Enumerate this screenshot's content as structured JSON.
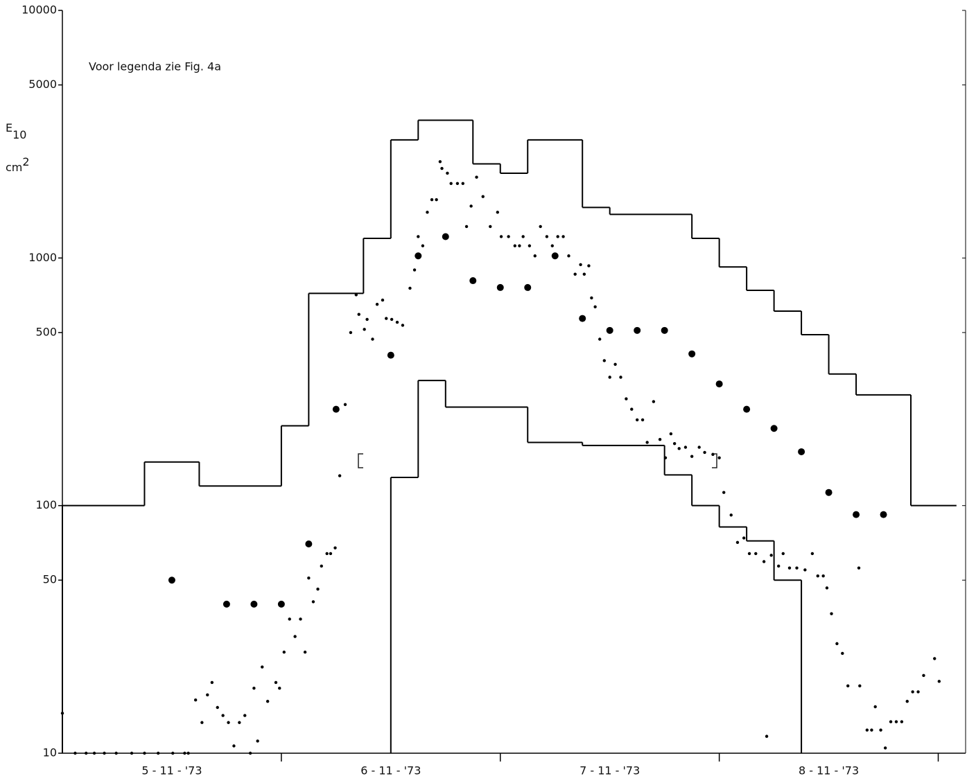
{
  "chart_data": {
    "type": "line",
    "annotation": "Voor legenda zie Fig. 4a",
    "ylabel": {
      "symbol": "E",
      "subscript": "10",
      "unit": "cm",
      "superscript": "2"
    },
    "log_y": true,
    "color": "#000000",
    "xlim": [
      0,
      99
    ],
    "xticks": [
      24,
      48,
      72,
      96
    ],
    "xlabels": [
      {
        "value": 12,
        "label": "5 - 11 - '73"
      },
      {
        "value": 36,
        "label": "6 - 11 - '73"
      },
      {
        "value": 60,
        "label": "7 - 11 - '73"
      },
      {
        "value": 84,
        "label": "8 - 11 - '73"
      }
    ],
    "ylim": [
      10,
      10000
    ],
    "yticks": [
      10,
      50,
      100,
      500,
      1000,
      5000,
      10000
    ],
    "series": [
      {
        "style": "step",
        "edges": [
          0,
          9,
          15,
          24,
          27,
          33,
          36,
          39,
          45,
          48,
          51,
          57,
          60,
          69,
          72,
          75,
          78,
          81,
          84,
          87,
          93,
          98
        ],
        "values": [
          100,
          150,
          120,
          210,
          720,
          1200,
          3000,
          3600,
          2400,
          2200,
          3000,
          1600,
          1500,
          1200,
          920,
          740,
          610,
          490,
          340,
          280,
          100
        ]
      },
      {
        "style": "step",
        "edges": [
          36,
          39,
          42,
          51,
          57,
          66,
          69,
          72,
          75,
          78,
          81
        ],
        "values": [
          130,
          320,
          250,
          180,
          175,
          133,
          100,
          82,
          72,
          50
        ]
      },
      {
        "style": "large-dots",
        "x": [
          12,
          18,
          21,
          24,
          27,
          30,
          36,
          39,
          42,
          45,
          48,
          51,
          54,
          57,
          60,
          63,
          66,
          69,
          72,
          75,
          78,
          81,
          84,
          87,
          90
        ],
        "values": [
          50,
          40,
          40,
          40,
          70,
          245,
          405,
          1020,
          1220,
          810,
          760,
          760,
          1020,
          570,
          510,
          510,
          510,
          410,
          310,
          245,
          205,
          165,
          113,
          92,
          92
        ]
      },
      {
        "style": "dots",
        "x": [
          0,
          1.4,
          2.6,
          3.5,
          4.6,
          5.9,
          7.6,
          9,
          10.5,
          12.1,
          13.4,
          13.8,
          14.6,
          15.3,
          15.9,
          16.4,
          17,
          17.6,
          18.2,
          18.8,
          19.4,
          20,
          20.6,
          21,
          21.4,
          21.9,
          22.5,
          23.4,
          23.8,
          24.3,
          24.9,
          25.5,
          26.1,
          26.6,
          27,
          27.5,
          28,
          28.4,
          29,
          29.4,
          29.9,
          30.4,
          31,
          31.6,
          32.2,
          32.5,
          33.1,
          33.4,
          34,
          34.5,
          35.1,
          35.5,
          36.1,
          36.7,
          37.3,
          38.1,
          38.6,
          39,
          39.5,
          40,
          40.5,
          41,
          41.4,
          41.6,
          42.2,
          42.6,
          43.3,
          43.9,
          44.3,
          44.8,
          45.4,
          46.1,
          46.9,
          47.7,
          48.1,
          48.9,
          49.6,
          50.1,
          50.5,
          51.2,
          51.8,
          52.4,
          53.1,
          53.7,
          54.3,
          54.9,
          55.5,
          56.2,
          56.8,
          57.2,
          57.7,
          58,
          58.4,
          58.9,
          59.4,
          60,
          60.6,
          61.2,
          61.8,
          62.4,
          63,
          63.6,
          64.1,
          64.8,
          65.5,
          66.1,
          66.7,
          67.1,
          67.6,
          68.3,
          69,
          69.8,
          70.4,
          71.3,
          72,
          72.5,
          73.3,
          74,
          74.7,
          75.3,
          76,
          76.9,
          77.2,
          77.7,
          78.5,
          79,
          79.7,
          80.5,
          81.4,
          82.2,
          82.8,
          83.4,
          83.8,
          84.3,
          84.9,
          85.5,
          86.1,
          87.3,
          87.4,
          88.2,
          88.7,
          89.1,
          89.7,
          90.2,
          90.8,
          91.4,
          92,
          92.6,
          93.2,
          93.8,
          94.4,
          95.6,
          96.1
        ],
        "values": [
          14.5,
          10,
          10,
          10,
          10,
          10,
          10,
          10,
          10,
          10,
          10,
          10,
          16.4,
          13.3,
          17.2,
          19.3,
          15.3,
          14.2,
          13.3,
          10.7,
          13.3,
          14.2,
          10,
          18.3,
          11.2,
          22.3,
          16.2,
          19.3,
          18.3,
          25.6,
          34.8,
          29.6,
          34.8,
          25.6,
          51,
          40.9,
          46,
          57,
          64,
          64,
          67.5,
          132,
          256,
          500,
          710,
          592,
          515,
          565,
          470,
          650,
          676,
          570,
          565,
          550,
          535,
          755,
          895,
          1220,
          1120,
          1530,
          1720,
          1720,
          2450,
          2300,
          2200,
          2000,
          2000,
          2000,
          1340,
          1620,
          2120,
          1770,
          1340,
          1530,
          1220,
          1220,
          1120,
          1120,
          1220,
          1120,
          1020,
          1340,
          1220,
          1120,
          1220,
          1220,
          1020,
          860,
          940,
          860,
          930,
          690,
          635,
          470,
          385,
          330,
          372,
          330,
          270,
          245,
          222,
          222,
          180,
          263,
          185,
          156,
          195,
          178,
          170,
          172,
          158,
          172,
          164,
          161,
          156,
          113,
          91.6,
          71,
          74,
          64,
          64,
          59.4,
          11.7,
          63,
          57,
          64,
          56,
          56,
          55,
          64,
          52,
          52,
          46.5,
          36.6,
          27.7,
          25.3,
          18.7,
          56,
          18.7,
          12.4,
          12.4,
          15.4,
          12.4,
          10.5,
          13.4,
          13.4,
          13.4,
          16.2,
          17.7,
          17.7,
          20.6,
          24.1,
          19.5
        ]
      }
    ]
  }
}
